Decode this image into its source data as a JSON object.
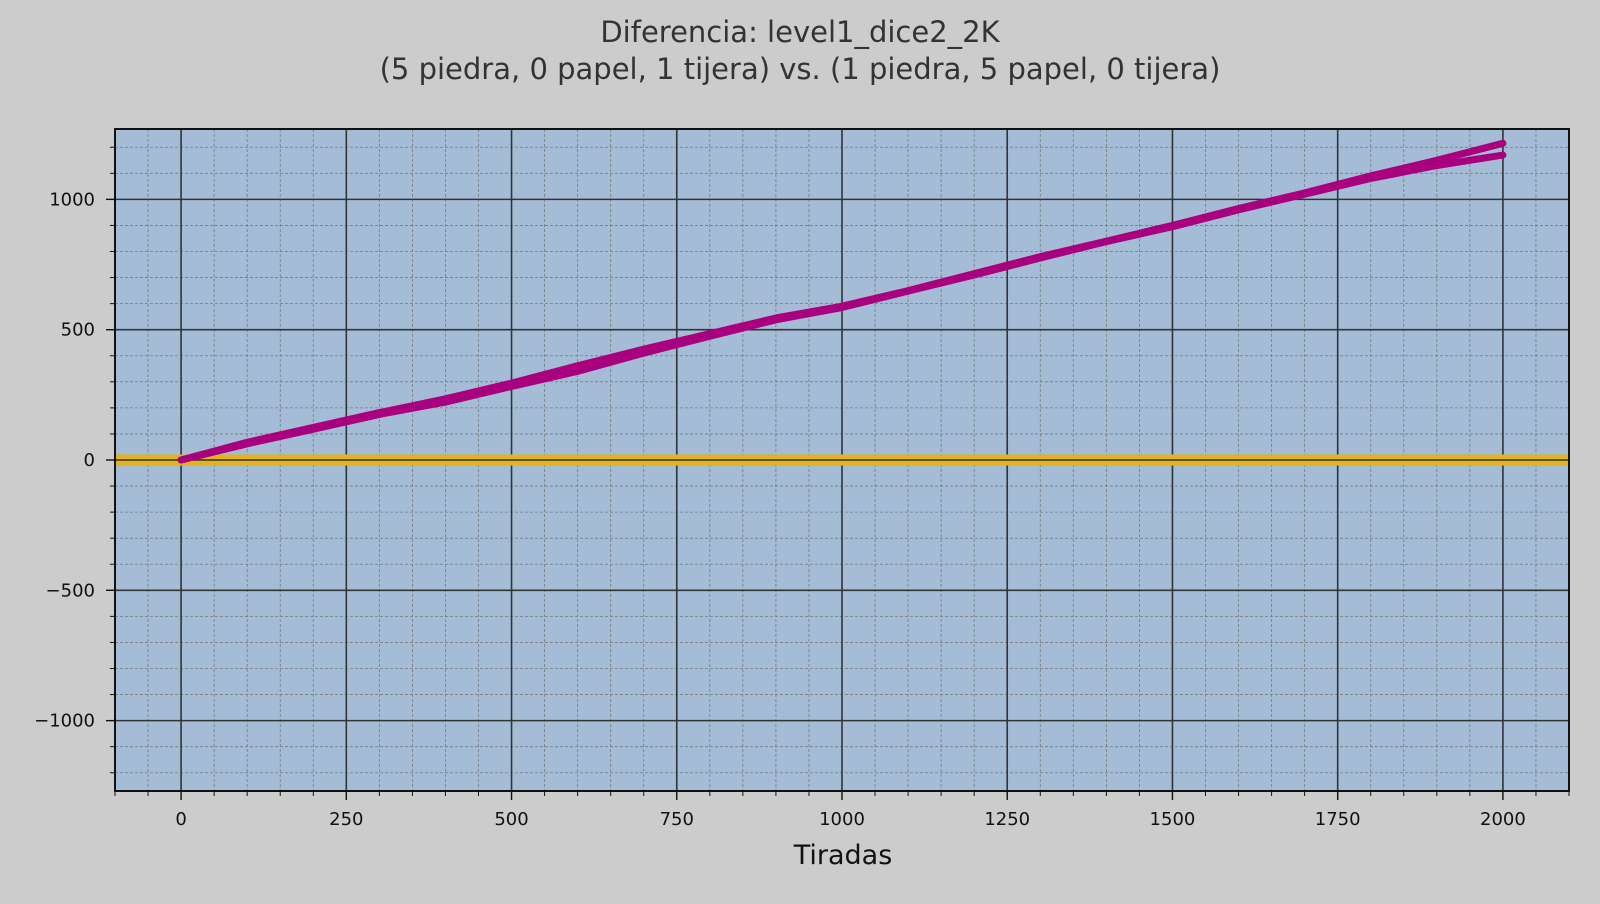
{
  "colors": {
    "figure_background": "#cccccc",
    "plot_background": "#a4bcd6",
    "major_grid": "#333333",
    "minor_grid": "#7a7a7a",
    "series": "#a8007e",
    "baseline": "#e3b31a",
    "text": "#333333"
  },
  "chart_data": {
    "type": "line",
    "title": "Diferencia: level1_dice2_2K",
    "subtitle": "(5 piedra, 0 papel, 1 tijera) vs. (1 piedra, 5 papel, 0 tijera)",
    "xlabel": "Tiradas",
    "ylabel": "",
    "xlim": [
      -100,
      2100
    ],
    "ylim": [
      -1270,
      1270
    ],
    "x_ticks": [
      0,
      250,
      500,
      750,
      1000,
      1250,
      1500,
      1750,
      2000
    ],
    "x_tick_labels": [
      "0",
      "250",
      "500",
      "750",
      "1000",
      "1250",
      "1500",
      "1750",
      "2000"
    ],
    "y_ticks": [
      -1000,
      -500,
      0,
      500,
      1000
    ],
    "y_tick_labels": [
      "−1000",
      "−500",
      "0",
      "500",
      "1000"
    ],
    "x_minor_step": 50,
    "y_minor_step": 100,
    "grid": true,
    "legend": "none",
    "baseline": 0,
    "x": [
      0,
      100,
      200,
      300,
      400,
      500,
      600,
      700,
      800,
      900,
      1000,
      1100,
      1200,
      1300,
      1400,
      1500,
      1600,
      1700,
      1800,
      1900,
      2000
    ],
    "series": [
      {
        "values": [
          0,
          68,
          125,
          182,
          235,
          295,
          362,
          425,
          485,
          545,
          590,
          650,
          715,
          780,
          840,
          900,
          965,
          1025,
          1090,
          1150,
          1215
        ]
      },
      {
        "values": [
          0,
          62,
          118,
          175,
          222,
          282,
          340,
          410,
          475,
          538,
          585,
          648,
          710,
          775,
          838,
          895,
          960,
          1020,
          1080,
          1130,
          1170
        ]
      }
    ]
  }
}
